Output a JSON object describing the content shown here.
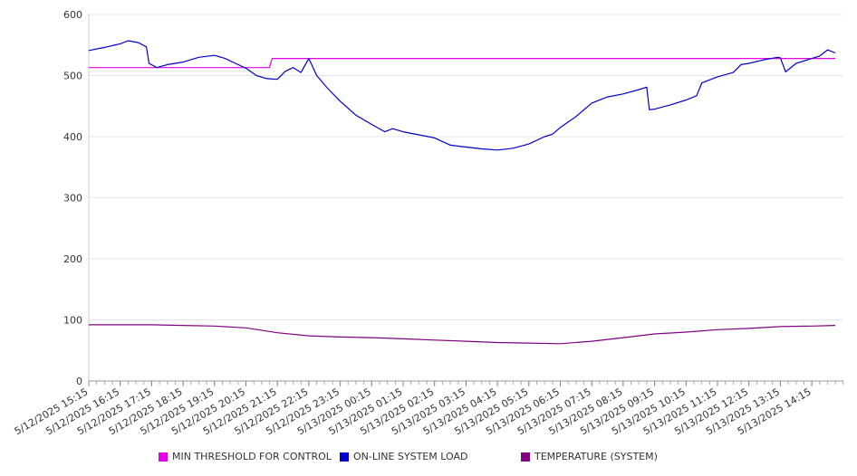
{
  "chart_data": {
    "type": "line",
    "title": "",
    "xlabel": "",
    "ylabel": "",
    "ylim": [
      0,
      600
    ],
    "yticks": [
      "0",
      "100",
      "200",
      "300",
      "400",
      "500",
      "600"
    ],
    "grid": true,
    "legend_placement": "bottom",
    "x_tick_labels": [
      "5/12/2025 15:15",
      "5/12/2025 16:15",
      "5/12/2025 17:15",
      "5/12/2025 18:15",
      "5/12/2025 19:15",
      "5/12/2025 20:15",
      "5/12/2025 21:15",
      "5/12/2025 22:15",
      "5/12/2025 23:15",
      "5/13/2025 00:15",
      "5/13/2025 01:15",
      "5/13/2025 02:15",
      "5/13/2025 03:15",
      "5/13/2025 04:15",
      "5/13/2025 05:15",
      "5/13/2025 06:15",
      "5/13/2025 07:15",
      "5/13/2025 08:15",
      "5/13/2025 09:15",
      "5/13/2025 10:15",
      "5/13/2025 11:15",
      "5/13/2025 12:15",
      "5/13/2025 13:15",
      "5/13/2025 14:15"
    ],
    "x_start": "5/12/2025 15:15",
    "x_end": "5/13/2025 15:00",
    "series": [
      {
        "name": "MIN THRESHOLD FOR CONTROL",
        "color": "#e600e6",
        "points": [
          [
            "5/12/2025 15:15",
            513
          ],
          [
            "5/12/2025 21:00",
            513
          ],
          [
            "5/12/2025 21:05",
            528
          ],
          [
            "5/13/2025 15:00",
            528
          ]
        ]
      },
      {
        "name": "ON-LINE SYSTEM LOAD",
        "color": "#0000cc",
        "points": [
          [
            "5/12/2025 15:15",
            541
          ],
          [
            "5/12/2025 15:45",
            546
          ],
          [
            "5/12/2025 16:15",
            552
          ],
          [
            "5/12/2025 16:30",
            557
          ],
          [
            "5/12/2025 16:50",
            554
          ],
          [
            "5/12/2025 17:05",
            547
          ],
          [
            "5/12/2025 17:10",
            520
          ],
          [
            "5/12/2025 17:25",
            513
          ],
          [
            "5/12/2025 17:45",
            518
          ],
          [
            "5/12/2025 18:15",
            522
          ],
          [
            "5/12/2025 18:45",
            530
          ],
          [
            "5/12/2025 19:15",
            533
          ],
          [
            "5/12/2025 19:35",
            528
          ],
          [
            "5/12/2025 19:55",
            520
          ],
          [
            "5/12/2025 20:15",
            512
          ],
          [
            "5/12/2025 20:35",
            500
          ],
          [
            "5/12/2025 20:55",
            495
          ],
          [
            "5/12/2025 21:15",
            494
          ],
          [
            "5/12/2025 21:30",
            507
          ],
          [
            "5/12/2025 21:45",
            513
          ],
          [
            "5/12/2025 22:00",
            505
          ],
          [
            "5/12/2025 22:15",
            528
          ],
          [
            "5/12/2025 22:30",
            500
          ],
          [
            "5/12/2025 22:50",
            480
          ],
          [
            "5/12/2025 23:15",
            458
          ],
          [
            "5/12/2025 23:45",
            435
          ],
          [
            "5/13/2025 00:15",
            420
          ],
          [
            "5/13/2025 00:40",
            408
          ],
          [
            "5/13/2025 00:55",
            413
          ],
          [
            "5/13/2025 01:15",
            408
          ],
          [
            "5/13/2025 01:45",
            403
          ],
          [
            "5/13/2025 02:15",
            398
          ],
          [
            "5/13/2025 02:45",
            386
          ],
          [
            "5/13/2025 03:15",
            383
          ],
          [
            "5/13/2025 03:45",
            380
          ],
          [
            "5/13/2025 04:15",
            378
          ],
          [
            "5/13/2025 04:45",
            381
          ],
          [
            "5/13/2025 05:15",
            388
          ],
          [
            "5/13/2025 05:45",
            400
          ],
          [
            "5/13/2025 06:00",
            404
          ],
          [
            "5/13/2025 06:15",
            415
          ],
          [
            "5/13/2025 06:45",
            433
          ],
          [
            "5/13/2025 07:15",
            455
          ],
          [
            "5/13/2025 07:45",
            465
          ],
          [
            "5/13/2025 08:15",
            470
          ],
          [
            "5/13/2025 08:45",
            477
          ],
          [
            "5/13/2025 09:00",
            481
          ],
          [
            "5/13/2025 09:05",
            444
          ],
          [
            "5/13/2025 09:15",
            445
          ],
          [
            "5/13/2025 09:45",
            452
          ],
          [
            "5/13/2025 10:15",
            460
          ],
          [
            "5/13/2025 10:35",
            467
          ],
          [
            "5/13/2025 10:45",
            488
          ],
          [
            "5/13/2025 11:15",
            498
          ],
          [
            "5/13/2025 11:45",
            505
          ],
          [
            "5/13/2025 12:00",
            518
          ],
          [
            "5/13/2025 12:15",
            520
          ],
          [
            "5/13/2025 12:45",
            526
          ],
          [
            "5/13/2025 13:10",
            530
          ],
          [
            "5/13/2025 13:15",
            529
          ],
          [
            "5/13/2025 13:25",
            506
          ],
          [
            "5/13/2025 13:45",
            520
          ],
          [
            "5/13/2025 14:15",
            528
          ],
          [
            "5/13/2025 14:30",
            532
          ],
          [
            "5/13/2025 14:45",
            542
          ],
          [
            "5/13/2025 15:00",
            537
          ]
        ]
      },
      {
        "name": "TEMPERATURE (SYSTEM)",
        "color": "#800080",
        "points": [
          [
            "5/12/2025 15:15",
            92
          ],
          [
            "5/12/2025 16:15",
            92
          ],
          [
            "5/12/2025 17:15",
            92
          ],
          [
            "5/12/2025 18:15",
            91
          ],
          [
            "5/12/2025 19:15",
            90
          ],
          [
            "5/12/2025 20:15",
            87
          ],
          [
            "5/12/2025 21:15",
            79
          ],
          [
            "5/12/2025 22:15",
            74
          ],
          [
            "5/12/2025 23:15",
            72
          ],
          [
            "5/13/2025 00:15",
            71
          ],
          [
            "5/13/2025 01:15",
            69
          ],
          [
            "5/13/2025 02:15",
            67
          ],
          [
            "5/13/2025 03:15",
            65
          ],
          [
            "5/13/2025 04:15",
            63
          ],
          [
            "5/13/2025 05:15",
            62
          ],
          [
            "5/13/2025 06:15",
            61
          ],
          [
            "5/13/2025 07:15",
            65
          ],
          [
            "5/13/2025 08:15",
            71
          ],
          [
            "5/13/2025 09:15",
            77
          ],
          [
            "5/13/2025 10:15",
            80
          ],
          [
            "5/13/2025 11:15",
            84
          ],
          [
            "5/13/2025 12:15",
            86
          ],
          [
            "5/13/2025 13:15",
            89
          ],
          [
            "5/13/2025 14:15",
            90
          ],
          [
            "5/13/2025 15:00",
            91
          ]
        ]
      }
    ]
  }
}
